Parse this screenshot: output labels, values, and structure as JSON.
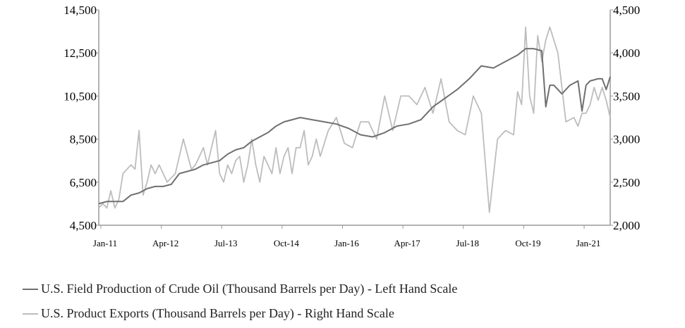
{
  "chart_data": {
    "type": "line",
    "x_tick_labels": [
      "Jan-11",
      "Apr-12",
      "Jul-13",
      "Oct-14",
      "Jan-16",
      "Apr-17",
      "Jul-18",
      "Oct-19",
      "Jan-21"
    ],
    "x_range": [
      "2011-01",
      "2021-08"
    ],
    "y_left": {
      "ticks": [
        "4,500",
        "6,500",
        "8,500",
        "10,500",
        "12,500",
        "14,500"
      ],
      "range": [
        4500,
        14500
      ]
    },
    "y_right": {
      "ticks": [
        "2,000",
        "2,500",
        "3,000",
        "3,500",
        "4,000",
        "4,500"
      ],
      "range": [
        2000,
        4500
      ]
    },
    "grid": false,
    "legend_position": "bottom",
    "series": [
      {
        "name": "U.S. Field Production of Crude Oil (Thousand Barrels per Day) - Left Hand Scale",
        "axis": "left",
        "color": "#707070",
        "x": [
          "2011-01",
          "2011-03",
          "2011-05",
          "2011-07",
          "2011-09",
          "2011-11",
          "2012-01",
          "2012-03",
          "2012-05",
          "2012-07",
          "2012-09",
          "2012-11",
          "2013-01",
          "2013-03",
          "2013-05",
          "2013-07",
          "2013-09",
          "2013-11",
          "2014-01",
          "2014-03",
          "2014-05",
          "2014-07",
          "2014-09",
          "2014-11",
          "2015-01",
          "2015-03",
          "2015-06",
          "2015-09",
          "2015-12",
          "2016-03",
          "2016-06",
          "2016-09",
          "2016-12",
          "2017-03",
          "2017-06",
          "2017-09",
          "2017-12",
          "2018-03",
          "2018-06",
          "2018-09",
          "2018-12",
          "2019-03",
          "2019-06",
          "2019-09",
          "2019-11",
          "2020-01",
          "2020-03",
          "2020-04",
          "2020-05",
          "2020-06",
          "2020-08",
          "2020-10",
          "2020-12",
          "2021-01",
          "2021-02",
          "2021-03",
          "2021-05",
          "2021-06",
          "2021-07",
          "2021-08"
        ],
        "values": [
          5500,
          5600,
          5600,
          5600,
          5900,
          6000,
          6200,
          6300,
          6300,
          6400,
          6900,
          7000,
          7100,
          7300,
          7400,
          7500,
          7800,
          8000,
          8100,
          8400,
          8600,
          8800,
          9100,
          9300,
          9400,
          9500,
          9400,
          9300,
          9200,
          9000,
          8700,
          8600,
          8800,
          9100,
          9200,
          9400,
          10000,
          10400,
          10800,
          11300,
          11900,
          11800,
          12100,
          12400,
          12700,
          12700,
          12600,
          10000,
          11000,
          11000,
          10600,
          11000,
          11200,
          9800,
          11000,
          11200,
          11300,
          11300,
          10800,
          11400
        ]
      },
      {
        "name": "U.S. Product Exports (Thousand Barrels per Day) - Right Hand Scale",
        "axis": "right",
        "color": "#bdbdbd",
        "x": [
          "2011-01",
          "2011-02",
          "2011-03",
          "2011-04",
          "2011-05",
          "2011-06",
          "2011-07",
          "2011-08",
          "2011-09",
          "2011-10",
          "2011-11",
          "2011-12",
          "2012-01",
          "2012-02",
          "2012-03",
          "2012-04",
          "2012-06",
          "2012-08",
          "2012-10",
          "2012-12",
          "2013-01",
          "2013-02",
          "2013-03",
          "2013-04",
          "2013-05",
          "2013-06",
          "2013-07",
          "2013-08",
          "2013-09",
          "2013-10",
          "2013-11",
          "2013-12",
          "2014-01",
          "2014-02",
          "2014-03",
          "2014-04",
          "2014-05",
          "2014-06",
          "2014-07",
          "2014-08",
          "2014-09",
          "2014-10",
          "2014-11",
          "2014-12",
          "2015-01",
          "2015-02",
          "2015-03",
          "2015-04",
          "2015-05",
          "2015-06",
          "2015-07",
          "2015-08",
          "2015-10",
          "2015-12",
          "2016-02",
          "2016-04",
          "2016-06",
          "2016-08",
          "2016-10",
          "2016-12",
          "2017-02",
          "2017-04",
          "2017-06",
          "2017-08",
          "2017-10",
          "2017-12",
          "2018-02",
          "2018-04",
          "2018-06",
          "2018-08",
          "2018-10",
          "2018-12",
          "2019-02",
          "2019-04",
          "2019-06",
          "2019-08",
          "2019-09",
          "2019-10",
          "2019-11",
          "2019-12",
          "2020-01",
          "2020-02",
          "2020-03",
          "2020-04",
          "2020-05",
          "2020-07",
          "2020-09",
          "2020-11",
          "2020-12",
          "2021-01",
          "2021-02",
          "2021-03",
          "2021-04",
          "2021-05",
          "2021-06",
          "2021-07",
          "2021-08"
        ],
        "values": [
          2200,
          2250,
          2200,
          2400,
          2200,
          2300,
          2600,
          2650,
          2700,
          2650,
          3100,
          2350,
          2500,
          2700,
          2600,
          2700,
          2500,
          2600,
          3000,
          2650,
          2700,
          2800,
          2900,
          2700,
          2900,
          3100,
          2600,
          2500,
          2700,
          2600,
          2750,
          2800,
          2500,
          2700,
          3000,
          2700,
          2500,
          2800,
          2700,
          2600,
          2900,
          2600,
          2800,
          2900,
          2600,
          2900,
          2900,
          3100,
          2700,
          2800,
          3000,
          2800,
          3100,
          3250,
          2950,
          2900,
          3200,
          3200,
          3000,
          3500,
          3100,
          3500,
          3500,
          3400,
          3600,
          3300,
          3700,
          3200,
          3100,
          3050,
          3500,
          3300,
          2150,
          3000,
          3100,
          3050,
          3550,
          3400,
          4300,
          3500,
          3300,
          4200,
          3900,
          4150,
          4300,
          4000,
          3200,
          3250,
          3150,
          3300,
          3300,
          3400,
          3600,
          3450,
          3600,
          3450,
          3250
        ]
      }
    ]
  }
}
